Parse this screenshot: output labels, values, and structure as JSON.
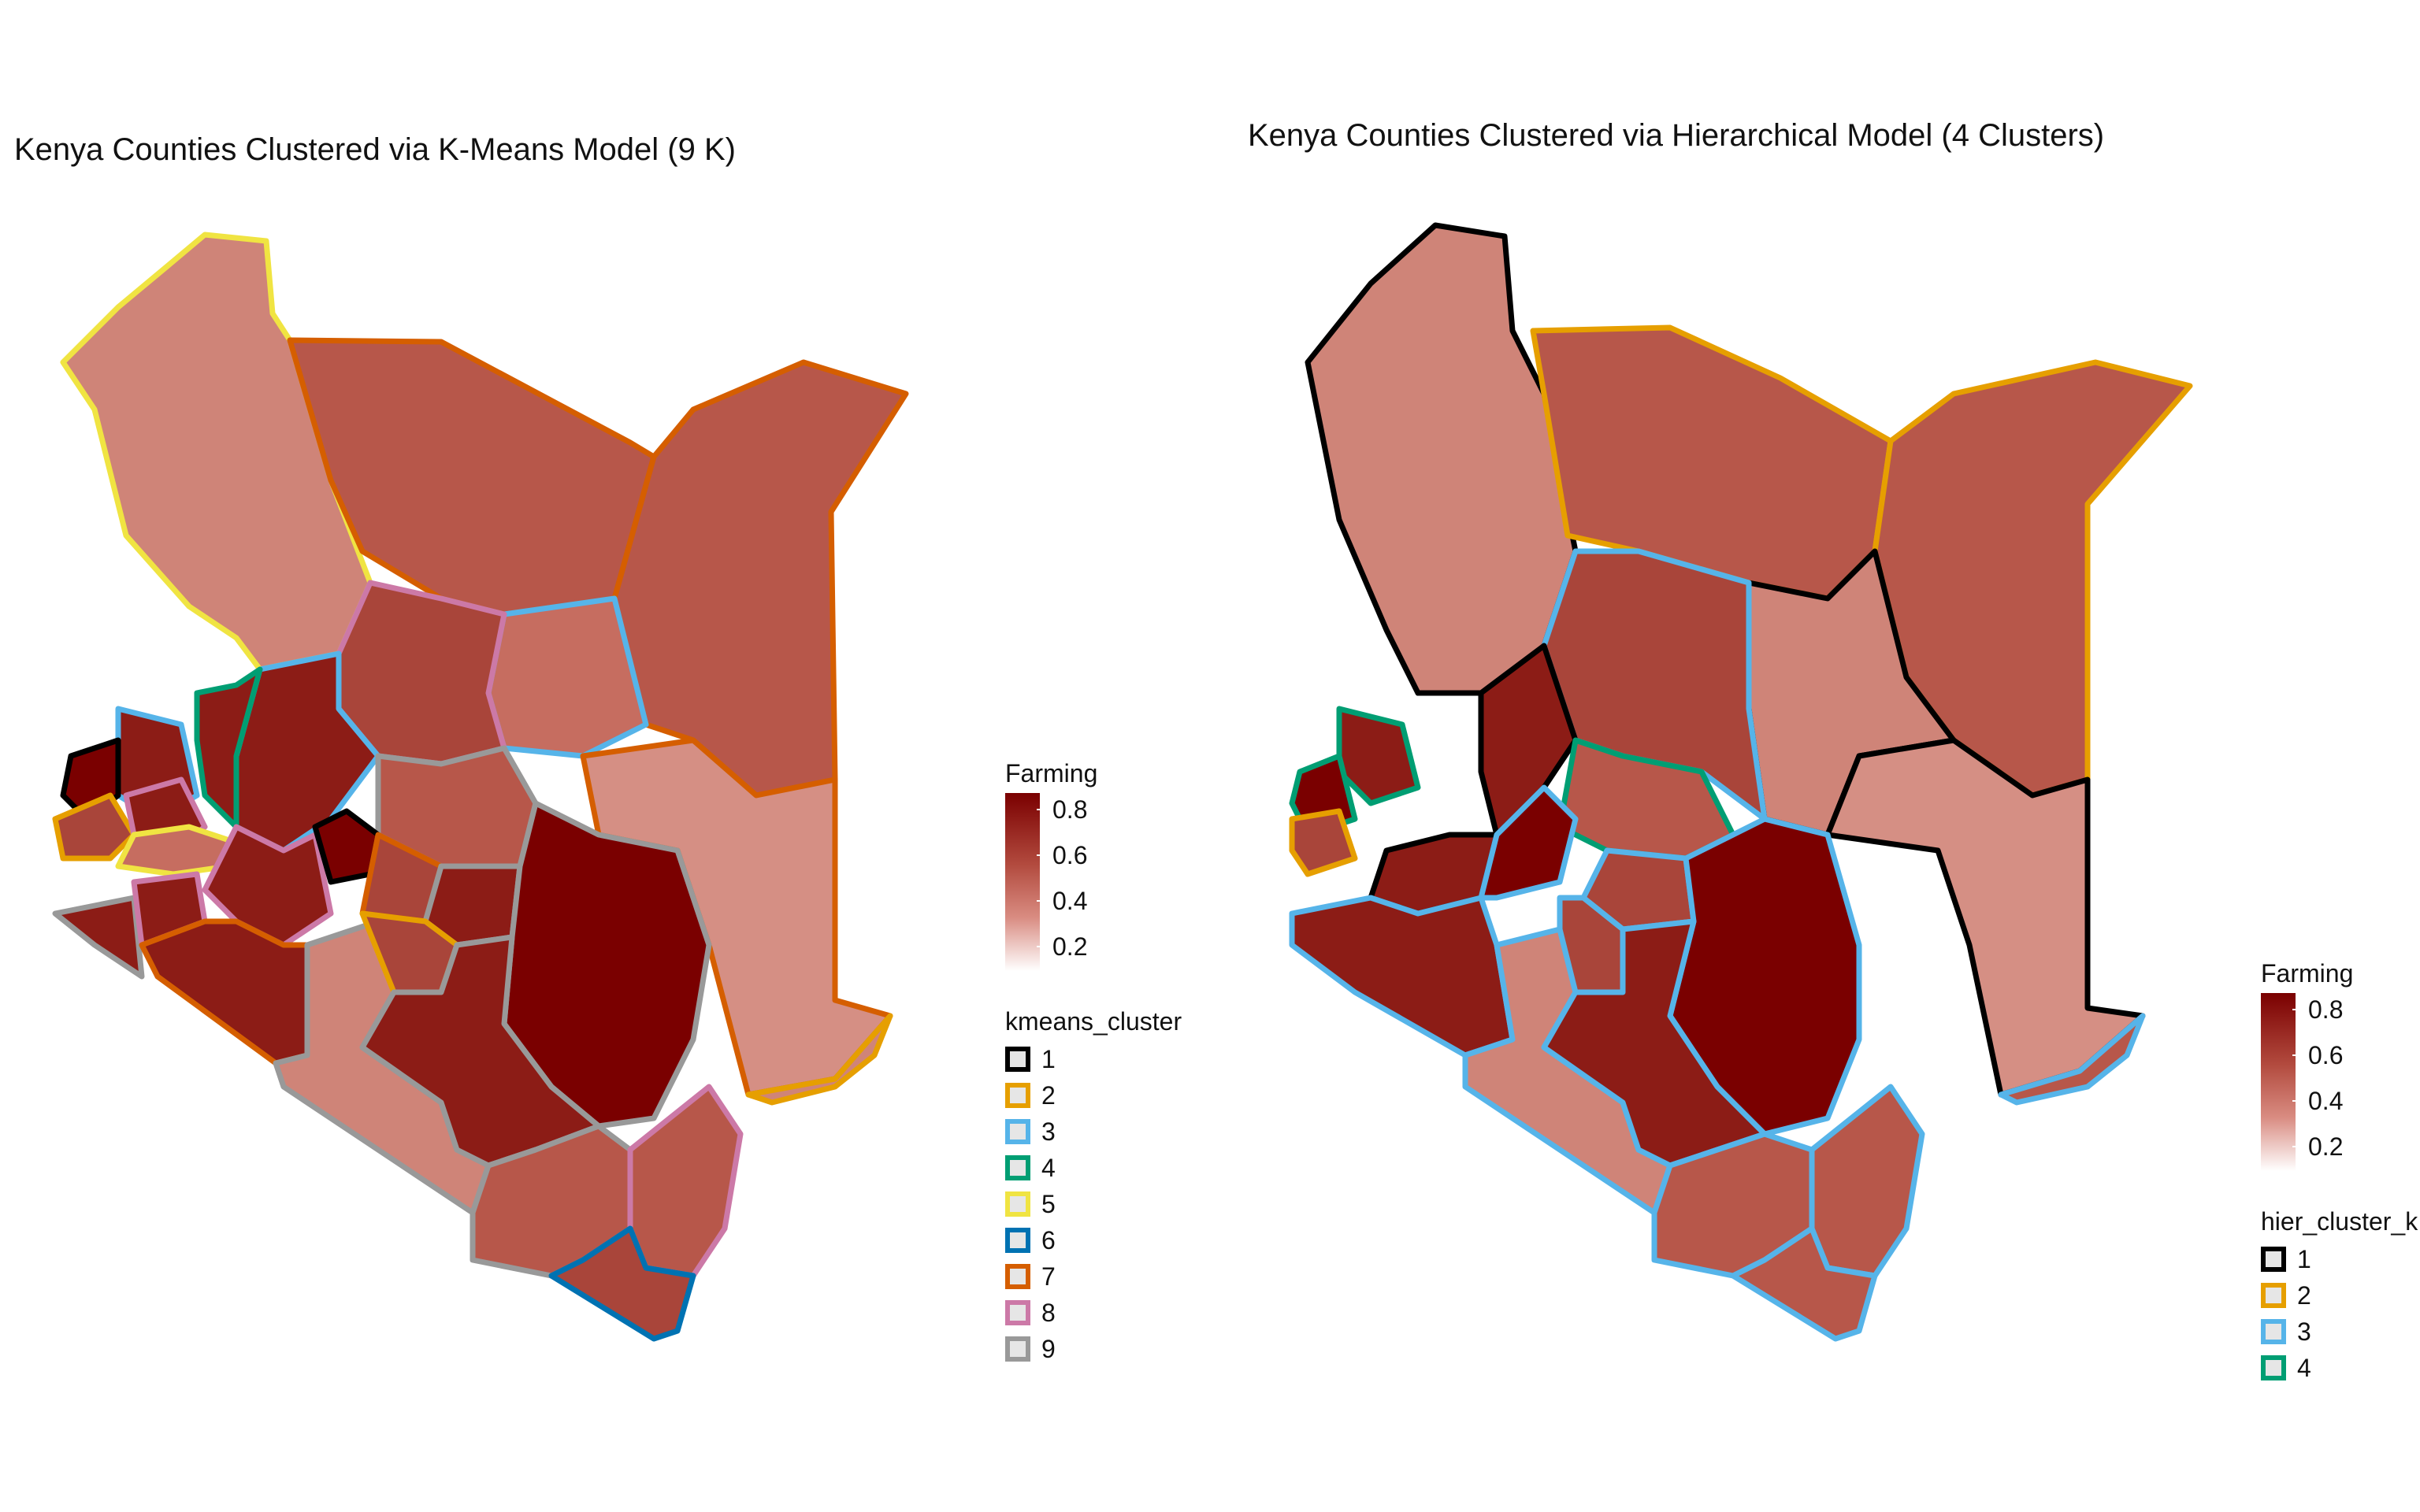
{
  "maps": {
    "left": {
      "title": "Kenya Counties Clustered via K-Means Model (9 K)"
    },
    "right": {
      "title": "Kenya Counties Clustered via Hierarchical Model (4 Clusters)"
    }
  },
  "legends": {
    "left": {
      "fill_title": "Farming",
      "fill_ticks": [
        "0.8",
        "0.6",
        "0.4",
        "0.2"
      ],
      "cluster_title": "kmeans_cluster",
      "clusters": [
        {
          "label": "1",
          "color": "#000000"
        },
        {
          "label": "2",
          "color": "#E69F00"
        },
        {
          "label": "3",
          "color": "#56B4E9"
        },
        {
          "label": "4",
          "color": "#009E73"
        },
        {
          "label": "5",
          "color": "#F0E442"
        },
        {
          "label": "6",
          "color": "#0072B2"
        },
        {
          "label": "7",
          "color": "#D55E00"
        },
        {
          "label": "8",
          "color": "#CC79A7"
        },
        {
          "label": "9",
          "color": "#999999"
        }
      ]
    },
    "right": {
      "fill_title": "Farming",
      "fill_ticks": [
        "0.8",
        "0.6",
        "0.4",
        "0.2"
      ],
      "cluster_title": "hier_cluster_k",
      "clusters": [
        {
          "label": "1",
          "color": "#000000"
        },
        {
          "label": "2",
          "color": "#E69F00"
        },
        {
          "label": "3",
          "color": "#56B4E9"
        },
        {
          "label": "4",
          "color": "#009E73"
        }
      ]
    }
  },
  "colors": {
    "fill_high": "#7a0000",
    "fill_mid": "#b24a3e",
    "fill_low": "#d98c82",
    "fill_zero": "#ffffff"
  }
}
